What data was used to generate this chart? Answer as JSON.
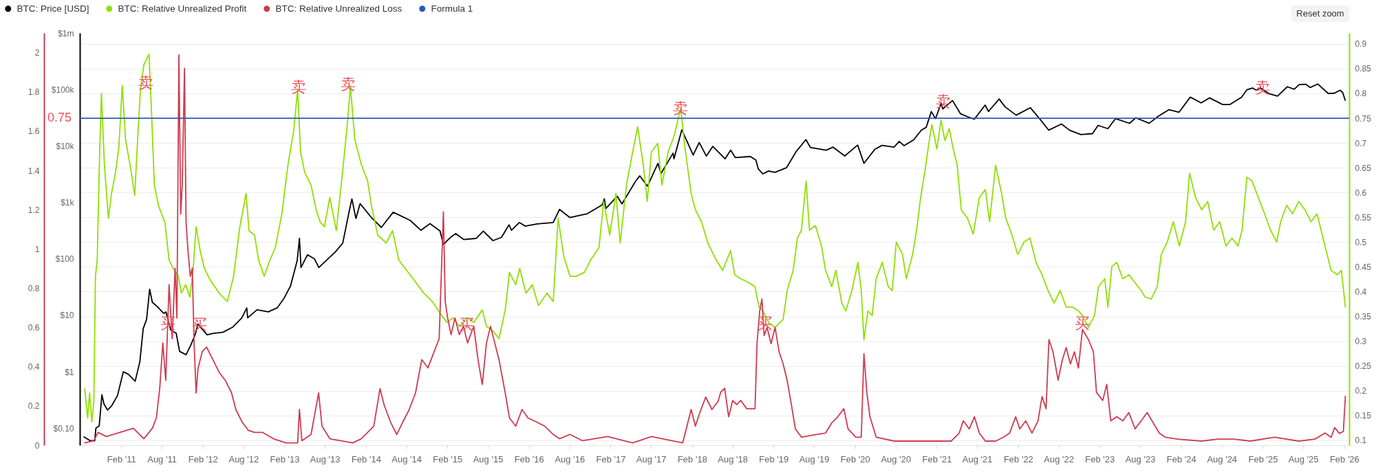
{
  "chart_data": {
    "type": "line",
    "annotations": [
      {
        "text": "卖",
        "x": "2011-05-23",
        "y": 0.821
      },
      {
        "text": "卖",
        "x": "2013-04-05",
        "y": 0.812
      },
      {
        "text": "卖",
        "x": "2013-11-12",
        "y": 0.818
      },
      {
        "text": "卖",
        "x": "2017-12-12",
        "y": 0.77
      },
      {
        "text": "卖",
        "x": "2021-03-02",
        "y": 0.784
      },
      {
        "text": "卖",
        "x": "2025-01-31",
        "y": 0.811
      },
      {
        "text": "买",
        "x": "2011-08-28",
        "y": 0.336
      },
      {
        "text": "买",
        "x": "2012-01-17",
        "y": 0.333
      },
      {
        "text": "买",
        "x": "2015-04-27",
        "y": 0.333
      },
      {
        "text": "买",
        "x": "2018-12-25",
        "y": 0.336
      },
      {
        "text": "买",
        "x": "2022-11-16",
        "y": 0.336
      },
      "Reset zoom"
    ],
    "xlim": [
      "2010-07-30",
      "2026-02-23"
    ],
    "xticks": [
      {
        "value": "2011-02-01",
        "label": "Feb '11"
      },
      {
        "value": "2011-08-01",
        "label": "Aug '11"
      },
      {
        "value": "2012-02-01",
        "label": "Feb '12"
      },
      {
        "value": "2012-08-01",
        "label": "Aug '12"
      },
      {
        "value": "2013-02-01",
        "label": "Feb '13"
      },
      {
        "value": "2013-08-01",
        "label": "Aug '13"
      },
      {
        "value": "2014-02-01",
        "label": "Feb '14"
      },
      {
        "value": "2014-08-01",
        "label": "Aug '14"
      },
      {
        "value": "2015-02-01",
        "label": "Feb '15"
      },
      {
        "value": "2015-08-01",
        "label": "Aug '15"
      },
      {
        "value": "2016-02-01",
        "label": "Feb '16"
      },
      {
        "value": "2016-08-01",
        "label": "Aug '16"
      },
      {
        "value": "2017-02-01",
        "label": "Feb '17"
      },
      {
        "value": "2017-08-01",
        "label": "Aug '17"
      },
      {
        "value": "2018-02-01",
        "label": "Feb '18"
      },
      {
        "value": "2018-08-01",
        "label": "Aug '18"
      },
      {
        "value": "2019-02-01",
        "label": "Feb '19"
      },
      {
        "value": "2019-08-01",
        "label": "Aug '19"
      },
      {
        "value": "2020-02-01",
        "label": "Feb '20"
      },
      {
        "value": "2020-08-01",
        "label": "Aug '20"
      },
      {
        "value": "2021-02-01",
        "label": "Feb '21"
      },
      {
        "value": "2021-08-01",
        "label": "Aug '21"
      },
      {
        "value": "2022-02-01",
        "label": "Feb '22"
      },
      {
        "value": "2022-08-01",
        "label": "Aug '22"
      },
      {
        "value": "2023-02-01",
        "label": "Feb '23"
      },
      {
        "value": "2023-08-01",
        "label": "Aug '23"
      },
      {
        "value": "2024-02-01",
        "label": "Feb '24"
      },
      {
        "value": "2024-08-01",
        "label": "Aug '24"
      },
      {
        "value": "2025-02-01",
        "label": "Feb '25"
      },
      {
        "value": "2025-08-01",
        "label": "Aug '25"
      },
      {
        "value": "2026-02-01",
        "label": "Feb '26"
      }
    ],
    "ylim": [
      0.09,
      0.922
    ],
    "yticks": [
      0.1,
      0.15,
      0.2,
      0.25,
      0.3,
      0.35,
      0.4,
      0.45,
      0.5,
      0.55,
      0.6,
      0.65,
      0.7,
      0.75,
      0.8,
      0.85,
      0.9
    ],
    "y2lim": [
      0.05,
      1000000
    ],
    "y2ticks": [
      {
        "value": 0.1,
        "label": "$0.10"
      },
      {
        "value": 1,
        "label": "$1"
      },
      {
        "value": 10,
        "label": "$10"
      },
      {
        "value": 100,
        "label": "$100"
      },
      {
        "value": 1000,
        "label": "$1k"
      },
      {
        "value": 10000,
        "label": "$10k"
      },
      {
        "value": 100000,
        "label": "$100k"
      },
      {
        "value": 1000000,
        "label": "$1m"
      }
    ],
    "y3lim": [
      0,
      2.1
    ],
    "y3ticks": [
      0,
      0.2,
      0.4,
      0.6,
      0.8,
      1,
      1.2,
      1.4,
      1.6,
      1.8,
      2
    ],
    "log": "y2",
    "grid": "y",
    "legend": "top left",
    "series": [
      {
        "name": "BTC: Price [USD]",
        "color": "#000000",
        "axis": "y2",
        "x": [
          "2010-08-18",
          "2010-09-15",
          "2010-10-05",
          "2010-10-10",
          "2010-10-25",
          "2010-11-06",
          "2010-11-15",
          "2010-12-01",
          "2010-12-20",
          "2011-01-15",
          "2011-02-10",
          "2011-03-05",
          "2011-04-04",
          "2011-04-25",
          "2011-05-10",
          "2011-05-25",
          "2011-06-08",
          "2011-06-20",
          "2011-07-10",
          "2011-08-10",
          "2011-08-20",
          "2011-09-10",
          "2011-10-05",
          "2011-10-20",
          "2011-11-18",
          "2011-12-10",
          "2011-12-30",
          "2012-01-10",
          "2012-02-20",
          "2012-03-20",
          "2012-05-01",
          "2012-06-15",
          "2012-07-25",
          "2012-08-16",
          "2012-08-20",
          "2012-10-01",
          "2012-11-20",
          "2012-12-30",
          "2013-01-30",
          "2013-02-28",
          "2013-03-30",
          "2013-04-09",
          "2013-04-16",
          "2013-05-15",
          "2013-06-15",
          "2013-07-05",
          "2013-08-15",
          "2013-09-15",
          "2013-10-20",
          "2013-11-18",
          "2013-11-30",
          "2013-12-18",
          "2014-01-06",
          "2014-02-25",
          "2014-04-11",
          "2014-06-03",
          "2014-08-18",
          "2014-10-05",
          "2014-11-15",
          "2014-12-30",
          "2015-01-14",
          "2015-02-15",
          "2015-03-10",
          "2015-04-15",
          "2015-06-10",
          "2015-07-12",
          "2015-08-24",
          "2015-10-01",
          "2015-11-04",
          "2015-11-15",
          "2015-12-20",
          "2016-01-15",
          "2016-03-10",
          "2016-05-20",
          "2016-06-17",
          "2016-08-02",
          "2016-10-20",
          "2016-12-25",
          "2017-01-04",
          "2017-01-11",
          "2017-03-03",
          "2017-03-24",
          "2017-05-25",
          "2017-06-12",
          "2017-07-16",
          "2017-09-01",
          "2017-09-15",
          "2017-11-08",
          "2017-11-12",
          "2017-12-17",
          "2018-02-06",
          "2018-03-05",
          "2018-04-06",
          "2018-05-05",
          "2018-06-29",
          "2018-07-24",
          "2018-08-14",
          "2018-10-20",
          "2018-11-14",
          "2018-11-25",
          "2018-12-15",
          "2019-01-10",
          "2019-02-07",
          "2019-03-31",
          "2019-05-14",
          "2019-06-26",
          "2019-07-16",
          "2019-09-25",
          "2019-10-26",
          "2019-12-17",
          "2020-02-13",
          "2020-03-12",
          "2020-04-30",
          "2020-06-01",
          "2020-07-25",
          "2020-08-17",
          "2020-09-08",
          "2020-10-21",
          "2020-11-24",
          "2020-12-16",
          "2021-01-08",
          "2021-01-27",
          "2021-02-21",
          "2021-02-28",
          "2021-04-13",
          "2021-05-19",
          "2021-06-22",
          "2021-07-20",
          "2021-09-06",
          "2021-09-21",
          "2021-11-08",
          "2021-12-04",
          "2022-01-23",
          "2022-03-28",
          "2022-05-12",
          "2022-06-18",
          "2022-08-14",
          "2022-09-20",
          "2022-11-09",
          "2022-12-31",
          "2023-01-25",
          "2023-03-10",
          "2023-04-13",
          "2023-06-15",
          "2023-07-13",
          "2023-09-11",
          "2023-10-24",
          "2023-12-08",
          "2024-01-23",
          "2024-03-13",
          "2024-05-01",
          "2024-06-07",
          "2024-08-05",
          "2024-09-06",
          "2024-10-29",
          "2024-11-22",
          "2024-12-17",
          "2025-01-02",
          "2025-01-21",
          "2025-02-27",
          "2025-04-08",
          "2025-05-22",
          "2025-06-22",
          "2025-07-14",
          "2025-08-13",
          "2025-09-01",
          "2025-10-06",
          "2025-11-21",
          "2025-12-18",
          "2026-01-14",
          "2026-01-25",
          "2026-02-05"
        ],
        "values": [
          0.07,
          0.06,
          0.06,
          0.1,
          0.11,
          0.39,
          0.27,
          0.21,
          0.25,
          0.38,
          1.0,
          0.9,
          0.68,
          1.5,
          5.8,
          8.4,
          29,
          17,
          14.5,
          10.8,
          11.5,
          5.5,
          4.8,
          2.3,
          2.0,
          3.0,
          4.7,
          7.0,
          4.5,
          4.8,
          5.0,
          6.2,
          9.0,
          13.5,
          9.0,
          12.5,
          11.5,
          13.5,
          20,
          33,
          93,
          230,
          70,
          118,
          100,
          70,
          100,
          130,
          190,
          700,
          1150,
          520,
          950,
          540,
          360,
          670,
          480,
          320,
          420,
          310,
          180,
          240,
          280,
          220,
          230,
          310,
          210,
          240,
          400,
          320,
          440,
          380,
          415,
          440,
          750,
          540,
          630,
          900,
          1150,
          780,
          1280,
          940,
          2400,
          2950,
          1930,
          4900,
          3250,
          7450,
          5900,
          19300,
          6900,
          11500,
          6600,
          9800,
          5900,
          8400,
          6200,
          6500,
          5600,
          3900,
          3200,
          3600,
          3400,
          4100,
          8000,
          12900,
          9400,
          8400,
          9500,
          6640,
          10350,
          4900,
          8700,
          10200,
          9500,
          12000,
          10100,
          12800,
          19000,
          21300,
          40600,
          30400,
          57500,
          45200,
          63500,
          37000,
          32500,
          29800,
          52700,
          40700,
          67600,
          49400,
          35000,
          47400,
          29000,
          19000,
          24400,
          18900,
          15900,
          16500,
          23100,
          20200,
          30400,
          25100,
          31400,
          25200,
          34000,
          43800,
          39500,
          73100,
          57800,
          71000,
          54000,
          54000,
          72700,
          98900,
          106100,
          97000,
          106100,
          84700,
          76300,
          111700,
          101000,
          122000,
          123300,
          108200,
          124700,
          85000,
          85500,
          96900,
          88000,
          64500
        ]
      },
      {
        "name": "BTC: Relative Unrealized Profit",
        "color": "#8ee000",
        "x": [
          "2010-08-21",
          "2010-09-03",
          "2010-09-12",
          "2010-09-22",
          "2010-10-01",
          "2010-10-08",
          "2010-10-16",
          "2010-10-27",
          "2010-11-04",
          "2010-11-17",
          "2010-12-05",
          "2010-12-19",
          "2011-01-06",
          "2011-01-21",
          "2011-02-05",
          "2011-02-20",
          "2011-03-18",
          "2011-04-02",
          "2011-04-17",
          "2011-04-28",
          "2011-05-13",
          "2011-06-05",
          "2011-06-16",
          "2011-06-29",
          "2011-07-18",
          "2011-08-15",
          "2011-09-03",
          "2011-09-21",
          "2011-10-14",
          "2011-10-28",
          "2011-11-16",
          "2011-12-05",
          "2011-12-20",
          "2012-01-02",
          "2012-01-21",
          "2012-02-08",
          "2012-03-07",
          "2012-04-14",
          "2012-05-21",
          "2012-06-18",
          "2012-07-16",
          "2012-08-13",
          "2012-08-26",
          "2012-09-20",
          "2012-10-08",
          "2012-11-02",
          "2012-11-28",
          "2012-12-22",
          "2013-01-20",
          "2013-02-17",
          "2013-03-14",
          "2013-04-01",
          "2013-04-14",
          "2013-05-03",
          "2013-05-31",
          "2013-06-23",
          "2013-07-11",
          "2013-07-30",
          "2013-08-23",
          "2013-09-21",
          "2013-10-19",
          "2013-11-12",
          "2013-11-23",
          "2013-12-13",
          "2014-01-11",
          "2014-02-08",
          "2014-02-26",
          "2014-03-26",
          "2014-05-03",
          "2014-05-31",
          "2014-06-28",
          "2014-07-26",
          "2014-08-23",
          "2014-09-20",
          "2014-10-18",
          "2014-11-25",
          "2015-01-01",
          "2015-01-29",
          "2015-02-26",
          "2015-03-26",
          "2015-05-02",
          "2015-05-30",
          "2015-07-07",
          "2015-07-26",
          "2015-08-23",
          "2015-09-20",
          "2015-10-18",
          "2015-11-06",
          "2015-12-04",
          "2015-12-22",
          "2016-01-19",
          "2016-02-16",
          "2016-03-15",
          "2016-04-22",
          "2016-05-20",
          "2016-06-11",
          "2016-07-06",
          "2016-08-03",
          "2016-08-31",
          "2016-10-07",
          "2016-11-04",
          "2016-12-11",
          "2017-01-01",
          "2017-01-28",
          "2017-02-25",
          "2017-03-16",
          "2017-04-13",
          "2017-05-11",
          "2017-06-02",
          "2017-06-27",
          "2017-07-15",
          "2017-08-03",
          "2017-08-31",
          "2017-09-19",
          "2017-10-17",
          "2017-11-14",
          "2017-12-12",
          "2017-12-31",
          "2018-01-28",
          "2018-02-16",
          "2018-03-16",
          "2018-04-13",
          "2018-05-20",
          "2018-06-18",
          "2018-07-24",
          "2018-08-11",
          "2018-09-07",
          "2018-10-14",
          "2018-11-10",
          "2018-11-28",
          "2018-12-16",
          "2019-01-12",
          "2019-02-08",
          "2019-03-16",
          "2019-04-03",
          "2019-04-30",
          "2019-05-19",
          "2019-06-06",
          "2019-06-27",
          "2019-07-12",
          "2019-08-08",
          "2019-09-04",
          "2019-09-22",
          "2019-10-20",
          "2019-11-07",
          "2019-12-04",
          "2019-12-22",
          "2020-01-18",
          "2020-02-14",
          "2020-02-29",
          "2020-03-12",
          "2020-03-30",
          "2020-04-18",
          "2020-05-06",
          "2020-06-02",
          "2020-06-29",
          "2020-07-17",
          "2020-08-04",
          "2020-09-01",
          "2020-09-18",
          "2020-10-16",
          "2020-11-03",
          "2020-11-21",
          "2020-12-09",
          "2020-12-27",
          "2021-01-10",
          "2021-02-02",
          "2021-02-20",
          "2021-03-10",
          "2021-03-29",
          "2021-04-16",
          "2021-05-04",
          "2021-05-22",
          "2021-06-18",
          "2021-07-15",
          "2021-08-11",
          "2021-09-07",
          "2021-09-26",
          "2021-10-23",
          "2021-11-19",
          "2021-12-07",
          "2022-01-03",
          "2022-01-30",
          "2022-02-27",
          "2022-03-26",
          "2022-04-22",
          "2022-05-19",
          "2022-06-15",
          "2022-07-12",
          "2022-08-08",
          "2022-09-04",
          "2022-10-02",
          "2022-10-29",
          "2022-11-16",
          "2022-12-13",
          "2023-01-09",
          "2023-01-27",
          "2023-02-24",
          "2023-03-10",
          "2023-03-28",
          "2023-04-19",
          "2023-05-16",
          "2023-06-12",
          "2023-07-10",
          "2023-08-06",
          "2023-08-24",
          "2023-09-20",
          "2023-10-17",
          "2023-11-04",
          "2023-12-01",
          "2023-12-28",
          "2024-01-24",
          "2024-02-21",
          "2024-03-10",
          "2024-04-06",
          "2024-05-03",
          "2024-05-30",
          "2024-06-26",
          "2024-07-23",
          "2024-08-20",
          "2024-09-16",
          "2024-10-13",
          "2024-10-31",
          "2024-11-22",
          "2024-12-15",
          "2025-01-12",
          "2025-02-09",
          "2025-03-08",
          "2025-04-04",
          "2025-04-22",
          "2025-05-19",
          "2025-06-15",
          "2025-07-12",
          "2025-08-09",
          "2025-09-05",
          "2025-10-02",
          "2025-10-29",
          "2025-11-16",
          "2025-12-04",
          "2026-01-01",
          "2026-01-19",
          "2026-02-06"
        ],
        "values": [
          0.204,
          0.145,
          0.196,
          0.137,
          0.179,
          0.431,
          0.464,
          0.682,
          0.8,
          0.657,
          0.548,
          0.598,
          0.64,
          0.691,
          0.816,
          0.707,
          0.64,
          0.594,
          0.724,
          0.808,
          0.858,
          0.879,
          0.766,
          0.615,
          0.573,
          0.54,
          0.464,
          0.447,
          0.431,
          0.397,
          0.414,
          0.389,
          0.447,
          0.531,
          0.481,
          0.447,
          0.422,
          0.397,
          0.38,
          0.431,
          0.531,
          0.598,
          0.523,
          0.514,
          0.464,
          0.431,
          0.464,
          0.489,
          0.556,
          0.657,
          0.724,
          0.808,
          0.682,
          0.64,
          0.615,
          0.565,
          0.54,
          0.531,
          0.59,
          0.523,
          0.64,
          0.749,
          0.816,
          0.707,
          0.657,
          0.624,
          0.573,
          0.514,
          0.498,
          0.523,
          0.464,
          0.447,
          0.431,
          0.414,
          0.397,
          0.38,
          0.355,
          0.338,
          0.347,
          0.33,
          0.347,
          0.338,
          0.363,
          0.33,
          0.321,
          0.305,
          0.363,
          0.439,
          0.414,
          0.447,
          0.397,
          0.414,
          0.372,
          0.397,
          0.38,
          0.548,
          0.472,
          0.431,
          0.431,
          0.439,
          0.464,
          0.489,
          0.582,
          0.514,
          0.598,
          0.498,
          0.615,
          0.682,
          0.733,
          0.657,
          0.582,
          0.682,
          0.699,
          0.615,
          0.682,
          0.716,
          0.77,
          0.691,
          0.598,
          0.565,
          0.54,
          0.498,
          0.464,
          0.443,
          0.483,
          0.434,
          0.426,
          0.418,
          0.41,
          0.369,
          0.361,
          0.336,
          0.328,
          0.344,
          0.402,
          0.443,
          0.508,
          0.524,
          0.623,
          0.524,
          0.533,
          0.492,
          0.443,
          0.41,
          0.443,
          0.377,
          0.361,
          0.402,
          0.459,
          0.402,
          0.303,
          0.361,
          0.352,
          0.426,
          0.459,
          0.41,
          0.402,
          0.5,
          0.475,
          0.426,
          0.475,
          0.524,
          0.59,
          0.639,
          0.696,
          0.737,
          0.688,
          0.746,
          0.705,
          0.729,
          0.688,
          0.655,
          0.565,
          0.549,
          0.516,
          0.59,
          0.606,
          0.541,
          0.655,
          0.598,
          0.549,
          0.516,
          0.475,
          0.5,
          0.508,
          0.459,
          0.434,
          0.402,
          0.377,
          0.402,
          0.369,
          0.369,
          0.361,
          0.352,
          0.328,
          0.352,
          0.41,
          0.426,
          0.369,
          0.451,
          0.459,
          0.426,
          0.434,
          0.418,
          0.402,
          0.389,
          0.385,
          0.41,
          0.475,
          0.5,
          0.541,
          0.492,
          0.541,
          0.639,
          0.59,
          0.565,
          0.582,
          0.524,
          0.541,
          0.492,
          0.508,
          0.492,
          0.524,
          0.631,
          0.623,
          0.59,
          0.557,
          0.524,
          0.5,
          0.541,
          0.574,
          0.557,
          0.582,
          0.565,
          0.541,
          0.557,
          0.508,
          0.475,
          0.443,
          0.434,
          0.443,
          0.369
        ]
      },
      {
        "name": "BTC: Relative Unrealized Loss",
        "color": "#cf3a4e",
        "axis": "y3",
        "x": [
          "2010-08-21",
          "2010-10-01",
          "2010-10-20",
          "2010-11-26",
          "2011-03-27",
          "2011-05-13",
          "2011-06-20",
          "2011-07-08",
          "2011-07-23",
          "2011-08-06",
          "2011-08-19",
          "2011-09-03",
          "2011-09-17",
          "2011-09-30",
          "2011-10-08",
          "2011-10-17",
          "2011-10-25",
          "2011-11-01",
          "2011-11-11",
          "2011-11-18",
          "2011-11-27",
          "2011-12-07",
          "2011-12-16",
          "2011-12-24",
          "2012-01-02",
          "2012-01-11",
          "2012-01-30",
          "2012-02-18",
          "2012-03-17",
          "2012-04-14",
          "2012-05-12",
          "2012-06-09",
          "2012-06-28",
          "2012-07-26",
          "2012-08-23",
          "2012-09-20",
          "2012-10-27",
          "2012-12-13",
          "2013-02-08",
          "2013-04-01",
          "2013-04-09",
          "2013-04-20",
          "2013-05-31",
          "2013-07-04",
          "2013-07-19",
          "2013-08-23",
          "2013-12-04",
          "2014-01-11",
          "2014-03-08",
          "2014-04-05",
          "2014-04-24",
          "2014-05-22",
          "2014-06-19",
          "2014-07-16",
          "2014-08-14",
          "2014-09-11",
          "2014-10-09",
          "2014-11-06",
          "2014-12-04",
          "2014-12-26",
          "2015-01-14",
          "2015-01-22",
          "2015-02-02",
          "2015-02-17",
          "2015-03-07",
          "2015-03-26",
          "2015-04-14",
          "2015-05-02",
          "2015-05-30",
          "2015-06-18",
          "2015-07-07",
          "2015-07-26",
          "2015-08-13",
          "2015-09-01",
          "2015-09-20",
          "2015-10-18",
          "2015-11-06",
          "2015-12-04",
          "2016-01-01",
          "2016-01-28",
          "2016-03-06",
          "2016-04-12",
          "2016-05-20",
          "2016-06-17",
          "2016-08-03",
          "2016-09-28",
          "2017-01-19",
          "2017-05-11",
          "2017-08-03",
          "2017-12-21",
          "2018-01-28",
          "2018-02-16",
          "2018-03-06",
          "2018-04-03",
          "2018-05-01",
          "2018-05-29",
          "2018-06-09",
          "2018-06-27",
          "2018-07-15",
          "2018-08-02",
          "2018-08-20",
          "2018-09-07",
          "2018-10-04",
          "2018-11-10",
          "2018-11-19",
          "2018-12-01",
          "2018-12-11",
          "2018-12-21",
          "2019-01-03",
          "2019-01-21",
          "2019-02-08",
          "2019-02-26",
          "2019-03-16",
          "2019-04-03",
          "2019-04-22",
          "2019-05-10",
          "2019-06-06",
          "2019-07-30",
          "2019-09-22",
          "2019-10-20",
          "2019-11-16",
          "2019-12-13",
          "2020-01-01",
          "2020-02-05",
          "2020-02-29",
          "2020-03-12",
          "2020-03-25",
          "2020-04-08",
          "2020-05-06",
          "2020-07-26",
          "2020-11-12",
          "2021-04-07",
          "2021-05-13",
          "2021-05-31",
          "2021-06-27",
          "2021-07-20",
          "2021-08-11",
          "2021-09-07",
          "2021-10-23",
          "2021-11-28",
          "2021-12-25",
          "2022-01-21",
          "2022-02-08",
          "2022-03-07",
          "2022-04-04",
          "2022-05-01",
          "2022-05-19",
          "2022-06-06",
          "2022-06-19",
          "2022-07-07",
          "2022-07-30",
          "2022-08-18",
          "2022-09-04",
          "2022-09-23",
          "2022-10-11",
          "2022-10-29",
          "2022-11-16",
          "2022-12-13",
          "2023-01-04",
          "2023-01-18",
          "2023-02-15",
          "2023-03-05",
          "2023-03-23",
          "2023-04-19",
          "2023-05-16",
          "2023-06-12",
          "2023-07-10",
          "2023-08-06",
          "2023-09-02",
          "2023-09-29",
          "2023-10-26",
          "2023-11-22",
          "2024-01-15",
          "2024-05-03",
          "2024-07-14",
          "2024-09-25",
          "2024-12-07",
          "2025-03-26",
          "2025-07-12",
          "2025-09-23",
          "2025-11-07",
          "2025-12-04",
          "2025-12-20",
          "2026-01-10",
          "2026-01-28",
          "2026-02-06"
        ],
        "values": [
          0.012,
          0.023,
          0.065,
          0.044,
          0.086,
          0.033,
          0.086,
          0.139,
          0.288,
          0.521,
          0.33,
          0.818,
          0.542,
          0.902,
          0.648,
          1.988,
          1.178,
          1.326,
          1.92,
          1.136,
          0.987,
          0.86,
          0.902,
          0.521,
          0.266,
          0.394,
          0.478,
          0.5,
          0.436,
          0.372,
          0.33,
          0.266,
          0.182,
          0.118,
          0.076,
          0.065,
          0.065,
          0.033,
          0.012,
          0.012,
          0.182,
          0.023,
          0.055,
          0.266,
          0.097,
          0.033,
          0.012,
          0.033,
          0.097,
          0.288,
          0.203,
          0.118,
          0.055,
          0.118,
          0.182,
          0.266,
          0.436,
          0.394,
          0.478,
          0.542,
          1.189,
          0.733,
          0.648,
          0.563,
          0.648,
          0.563,
          0.606,
          0.521,
          0.606,
          0.436,
          0.309,
          0.521,
          0.606,
          0.521,
          0.436,
          0.266,
          0.139,
          0.097,
          0.182,
          0.139,
          0.118,
          0.097,
          0.055,
          0.033,
          0.055,
          0.023,
          0.044,
          0.012,
          0.044,
          0.012,
          0.182,
          0.097,
          0.16,
          0.245,
          0.182,
          0.224,
          0.269,
          0.29,
          0.145,
          0.228,
          0.207,
          0.228,
          0.186,
          0.186,
          0.517,
          0.683,
          0.745,
          0.559,
          0.6,
          0.517,
          0.6,
          0.476,
          0.414,
          0.331,
          0.207,
          0.083,
          0.041,
          0.052,
          0.062,
          0.114,
          0.145,
          0.186,
          0.083,
          0.041,
          0.041,
          0.466,
          0.269,
          0.145,
          0.041,
          0.021,
          0.021,
          0.021,
          0.062,
          0.124,
          0.083,
          0.145,
          0.062,
          0.021,
          0.021,
          0.041,
          0.062,
          0.145,
          0.083,
          0.124,
          0.062,
          0.124,
          0.248,
          0.186,
          0.538,
          0.476,
          0.331,
          0.435,
          0.497,
          0.414,
          0.476,
          0.393,
          0.59,
          0.538,
          0.476,
          0.269,
          0.228,
          0.31,
          0.124,
          0.145,
          0.124,
          0.166,
          0.083,
          0.124,
          0.166,
          0.114,
          0.062,
          0.041,
          0.031,
          0.021,
          0.031,
          0.031,
          0.021,
          0.041,
          0.021,
          0.031,
          0.062,
          0.04,
          0.09,
          0.06,
          0.07,
          0.25
        ]
      },
      {
        "name": "Formula 1",
        "color": "#2b58bb",
        "x": [
          "2010-07-30",
          "2026-02-23"
        ],
        "values": [
          0.75,
          0.75
        ],
        "value_labels": [
          "0.75",
          null
        ]
      }
    ]
  }
}
